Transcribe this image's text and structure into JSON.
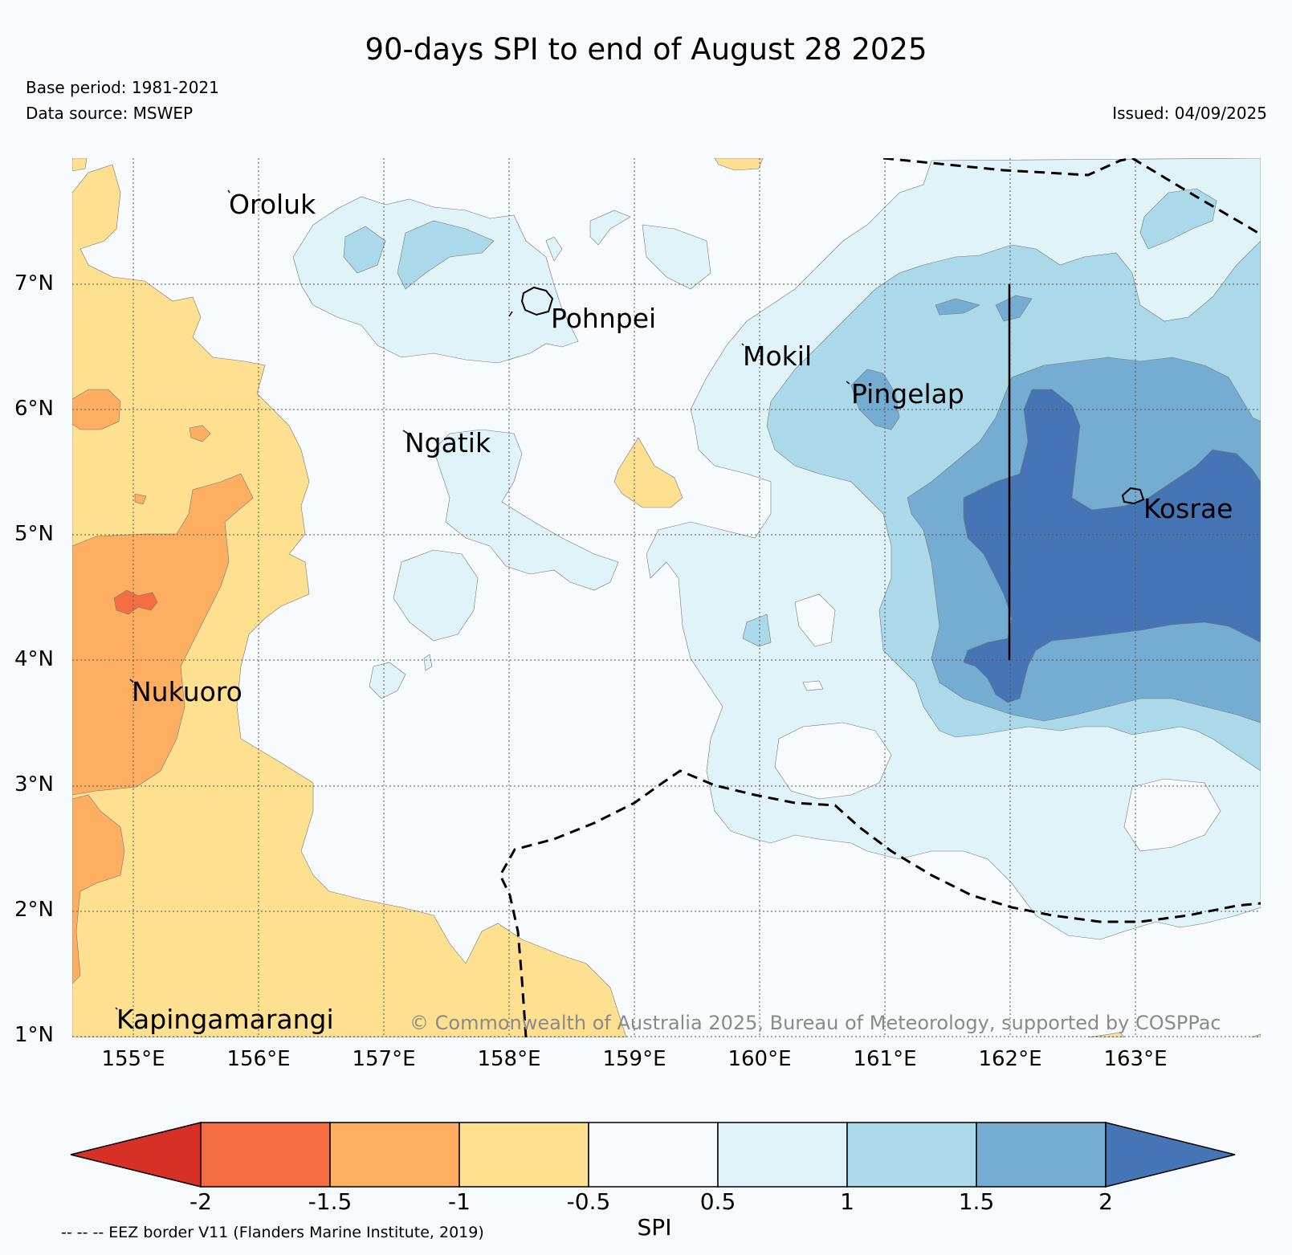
{
  "map": {
    "title": "90-days SPI to end of August 28 2025",
    "base_period": "Base period: 1981-2021",
    "data_source": "Data source: MSWEP",
    "issued": "Issued: 04/09/2025",
    "copyright": "© Commonwealth of Australia 2025, Bureau of Meteorology, supported by COSPPac",
    "lat_labels": [
      "7°N",
      "6°N",
      "5°N",
      "4°N",
      "3°N",
      "2°N",
      "1°N"
    ],
    "lon_labels": [
      "155°E",
      "156°E",
      "157°E",
      "158°E",
      "159°E",
      "160°E",
      "161°E",
      "162°E",
      "163°E"
    ],
    "places": [
      "Oroluk",
      "Pohnpei",
      "Mokil",
      "Pingelap",
      "Ngatik",
      "Kosrae",
      "Nukuoro",
      "Kapingamarangi"
    ],
    "extent": {
      "lon_min": 154.5,
      "lon_max": 164.0,
      "lat_min": 1.0,
      "lat_max": 8.0
    }
  },
  "colorbar": {
    "title": "SPI",
    "ticks": [
      "-2",
      "-1.5",
      "-1",
      "-0.5",
      "0.5",
      "1",
      "1.5",
      "2"
    ],
    "colors": [
      "#d73027",
      "#f46d43",
      "#fdae61",
      "#fee090",
      "#f7fbfd",
      "#e0f3f8",
      "#abd9e9",
      "#74add1",
      "#4575b4"
    ]
  },
  "legend": {
    "eez_note": "-- -- -- EEZ border V11 (Flanders Marine Institute, 2019)"
  }
}
